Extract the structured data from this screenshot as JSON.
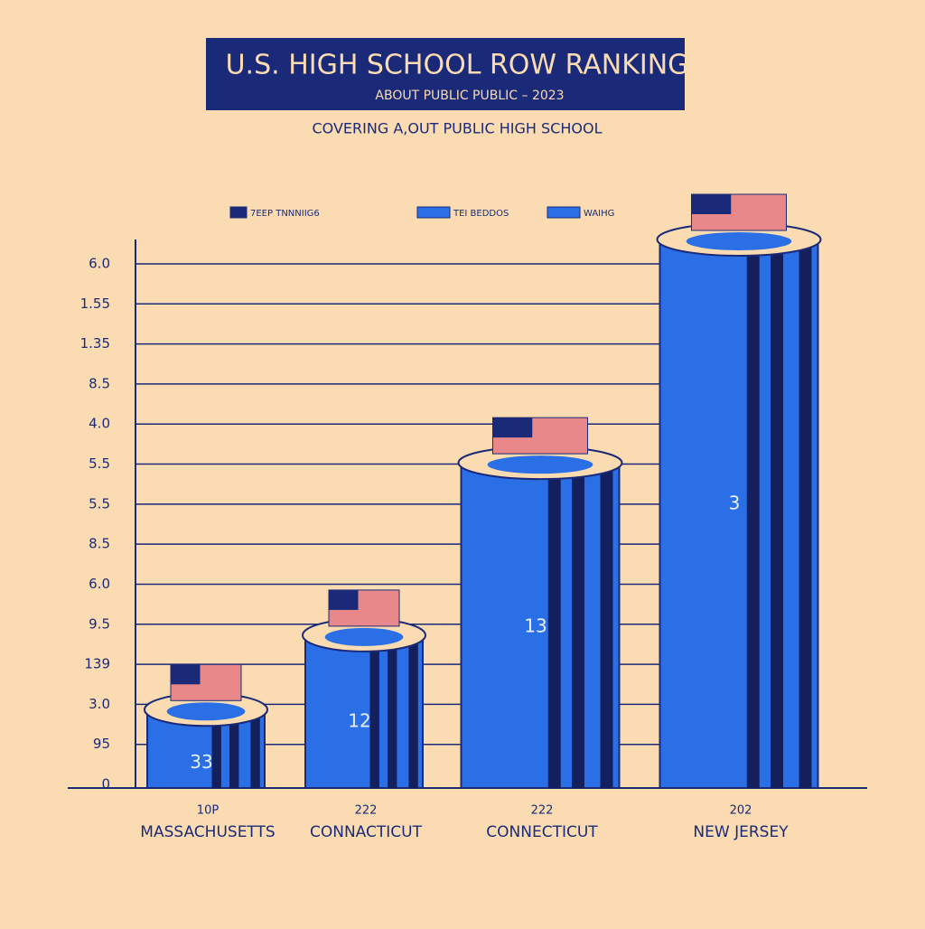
{
  "chart_data": {
    "type": "bar",
    "title": "U.S. HIGH SCHOOL ROW RANKING",
    "subtitle": "ABOUT PUBLIC PUBLIC – 2023",
    "caption": "COVERING A,OUT PUBLIC HIGH SCHOOL",
    "legend": [
      "7EEP TNNNIIG6",
      "TEI BEDDOS",
      "WAIHG"
    ],
    "y_axis_labels": [
      "0",
      "95",
      "3.0",
      "139",
      "9.5",
      "6.0",
      "8.5",
      "5.5",
      "5.5",
      "4.0",
      "8.5",
      "1.35",
      "1.55",
      "6.0"
    ],
    "categories": [
      "MASSACHUSETTS",
      "CONNACTICUT",
      "CONNECTICUT",
      "NEW JERSEY"
    ],
    "category_codes": [
      "10P",
      "222",
      "222",
      "202"
    ],
    "bar_labels": [
      "33",
      "12",
      "13",
      "3"
    ],
    "values": [
      2,
      3.9,
      8.3,
      14
    ],
    "ylim": [
      0,
      14
    ],
    "color": "#2a6fe6"
  }
}
